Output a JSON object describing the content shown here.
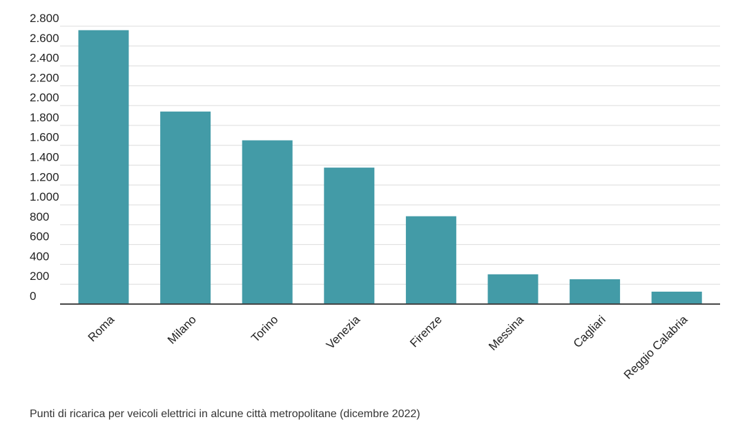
{
  "chart_data": {
    "type": "bar",
    "categories": [
      "Roma",
      "Milano",
      "Torino",
      "Venezia",
      "Firenze",
      "Messina",
      "Cagliari",
      "Reggio Calabria"
    ],
    "values": [
      2760,
      1940,
      1650,
      1375,
      885,
      300,
      250,
      125
    ],
    "ylim": [
      0,
      2800
    ],
    "yticks": [
      {
        "value": 0,
        "label": "0"
      },
      {
        "value": 200,
        "label": "200"
      },
      {
        "value": 400,
        "label": "400"
      },
      {
        "value": 600,
        "label": "600"
      },
      {
        "value": 800,
        "label": "800"
      },
      {
        "value": 1000,
        "label": "1.000"
      },
      {
        "value": 1200,
        "label": "1.200"
      },
      {
        "value": 1400,
        "label": "1.400"
      },
      {
        "value": 1600,
        "label": "1.600"
      },
      {
        "value": 1800,
        "label": "1.800"
      },
      {
        "value": 2000,
        "label": "2.000"
      },
      {
        "value": 2200,
        "label": "2.200"
      },
      {
        "value": 2400,
        "label": "2.400"
      },
      {
        "value": 2600,
        "label": "2.600"
      },
      {
        "value": 2800,
        "label": "2.800"
      }
    ],
    "grid": true,
    "bar_color": "#439ba7",
    "caption": "Punti di ricarica per veicoli elettrici in alcune città metropolitane (dicembre 2022)"
  }
}
